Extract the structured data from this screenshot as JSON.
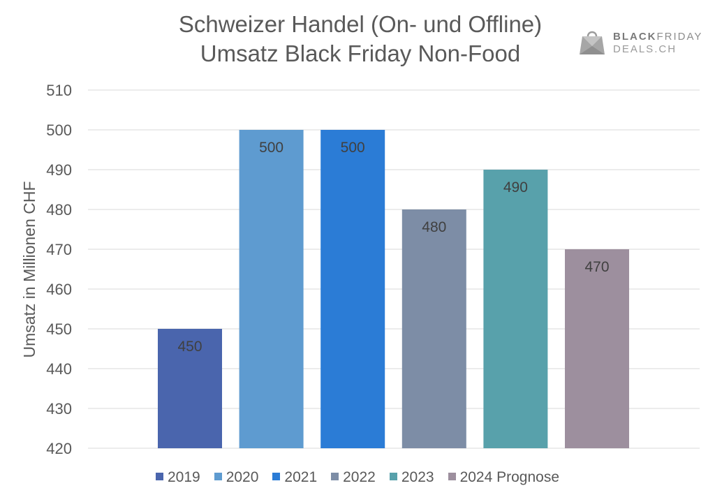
{
  "chart_data": {
    "type": "bar",
    "title": "Schweizer Handel (On- und Offline)",
    "subtitle": "Umsatz Black Friday Non-Food",
    "xlabel": "",
    "ylabel": "Umsatz in Millionen CHF",
    "ylim": [
      420,
      510
    ],
    "yticks": [
      420,
      430,
      440,
      450,
      460,
      470,
      480,
      490,
      500,
      510
    ],
    "grid": true,
    "legend_position": "bottom",
    "series": [
      {
        "name": "2019",
        "value": 450,
        "color": "#4a65ad"
      },
      {
        "name": "2020",
        "value": 500,
        "color": "#5e9bd0"
      },
      {
        "name": "2021",
        "value": 500,
        "color": "#2b7cd6"
      },
      {
        "name": "2022",
        "value": 480,
        "color": "#7d8da6"
      },
      {
        "name": "2023",
        "value": 490,
        "color": "#58a1ab"
      },
      {
        "name": "2024 Prognose",
        "value": 470,
        "color": "#9d8f9e"
      }
    ]
  },
  "logo": {
    "line1_bold": "BLACK",
    "line1_rest": "FRIDAY",
    "line2": "DEALS.CH"
  }
}
